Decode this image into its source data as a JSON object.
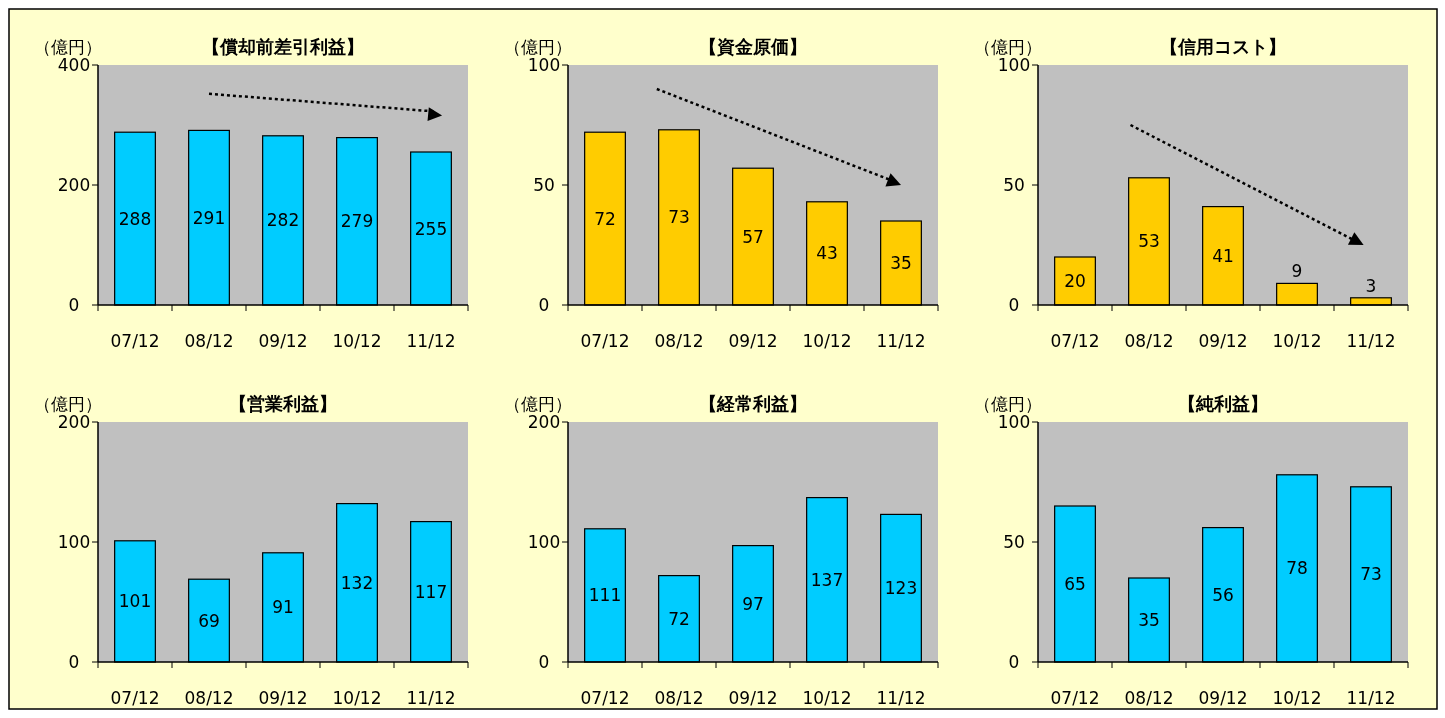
{
  "chart_data": [
    {
      "type": "bar",
      "title": "【償却前差引利益】",
      "ylabel": "（億円）",
      "categories": [
        "07/12",
        "08/12",
        "09/12",
        "10/12",
        "11/12"
      ],
      "values": [
        288,
        291,
        282,
        279,
        255
      ],
      "color": "#00ccff",
      "ylim": [
        0,
        400
      ],
      "yticks": [
        0,
        200,
        400
      ],
      "data_labels": true
    },
    {
      "type": "bar",
      "title": "【資金原価】",
      "ylabel": "（億円）",
      "categories": [
        "07/12",
        "08/12",
        "09/12",
        "10/12",
        "11/12"
      ],
      "values": [
        72,
        73,
        57,
        43,
        35
      ],
      "color": "#ffcc00",
      "ylim": [
        0,
        100
      ],
      "yticks": [
        0,
        50,
        100
      ],
      "data_labels": true
    },
    {
      "type": "bar",
      "title": "【信用コスト】",
      "ylabel": "（億円）",
      "categories": [
        "07/12",
        "08/12",
        "09/12",
        "10/12",
        "11/12"
      ],
      "values": [
        20,
        53,
        41,
        9,
        3
      ],
      "color": "#ffcc00",
      "ylim": [
        0,
        100
      ],
      "yticks": [
        0,
        50,
        100
      ],
      "data_labels": true
    },
    {
      "type": "bar",
      "title": "【営業利益】",
      "ylabel": "（億円）",
      "categories": [
        "07/12",
        "08/12",
        "09/12",
        "10/12",
        "11/12"
      ],
      "values": [
        101,
        69,
        91,
        132,
        117
      ],
      "color": "#00ccff",
      "ylim": [
        0,
        200
      ],
      "yticks": [
        0,
        100,
        200
      ],
      "data_labels": true
    },
    {
      "type": "bar",
      "title": "【経常利益】",
      "ylabel": "（億円）",
      "categories": [
        "07/12",
        "08/12",
        "09/12",
        "10/12",
        "11/12"
      ],
      "values": [
        111,
        72,
        97,
        137,
        123
      ],
      "color": "#00ccff",
      "ylim": [
        0,
        200
      ],
      "yticks": [
        0,
        100,
        200
      ],
      "data_labels": true
    },
    {
      "type": "bar",
      "title": "【純利益】",
      "ylabel": "（億円）",
      "categories": [
        "07/12",
        "08/12",
        "09/12",
        "10/12",
        "11/12"
      ],
      "values": [
        65,
        35,
        56,
        78,
        73
      ],
      "color": "#00ccff",
      "ylim": [
        0,
        100
      ],
      "yticks": [
        0,
        50,
        100
      ],
      "data_labels": true
    }
  ]
}
